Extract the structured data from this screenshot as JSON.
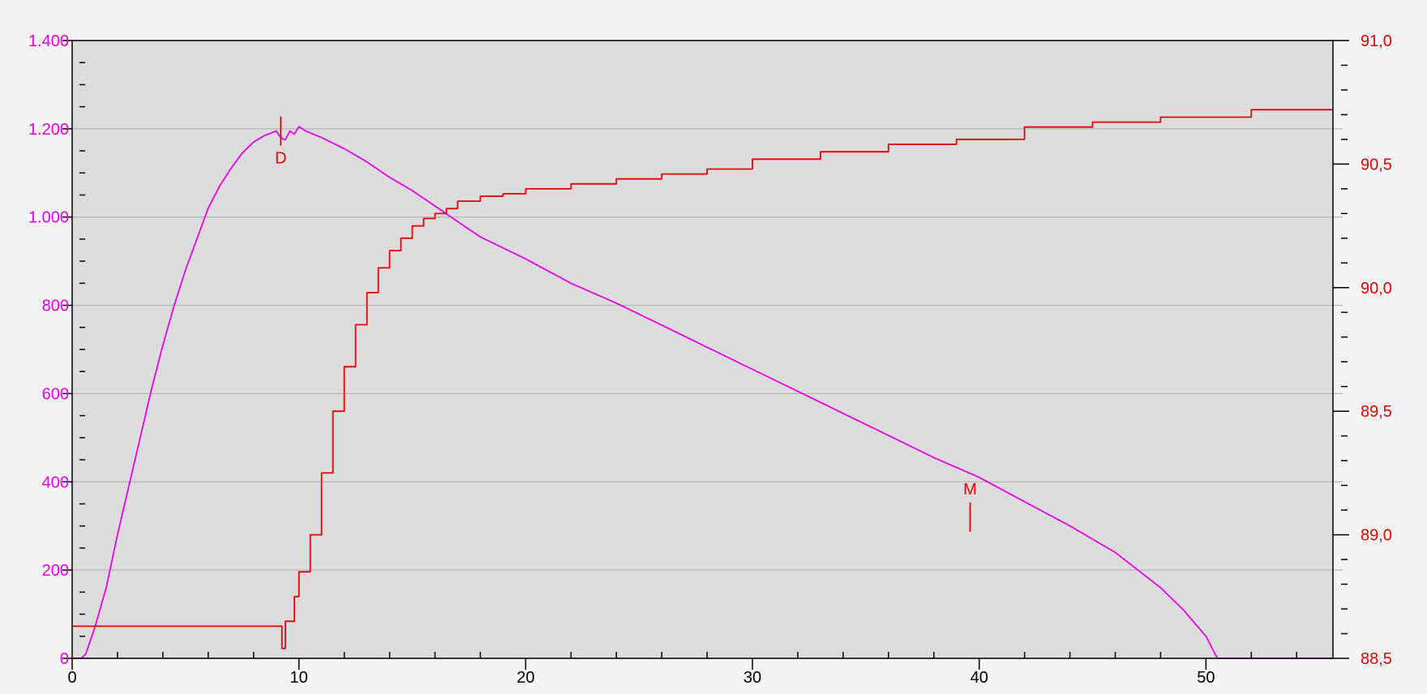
{
  "chart_data": {
    "type": "line",
    "title": "",
    "xlabel": "",
    "ylabel_left": "",
    "ylabel_right": "",
    "xlim": [
      0,
      55.6
    ],
    "x_ticks": [
      "0",
      "10",
      "20",
      "30",
      "40",
      "50"
    ],
    "x_tick_values": [
      0,
      10,
      20,
      30,
      40,
      50
    ],
    "y_left": {
      "lim": [
        0,
        1400
      ],
      "tick_values": [
        0,
        200,
        400,
        600,
        800,
        1000,
        1200,
        1400
      ],
      "tick_labels": [
        "0",
        "200",
        "400",
        "600",
        "800",
        "1.000",
        "1.200",
        "1.400"
      ],
      "color": "#e600e6"
    },
    "y_right": {
      "lim": [
        88.5,
        91.0
      ],
      "tick_values": [
        88.5,
        89.0,
        89.5,
        90.0,
        90.5,
        91.0
      ],
      "tick_labels": [
        "88,5",
        "89,0",
        "89,5",
        "90,0",
        "90,5",
        "91,0"
      ],
      "color": "#e60000"
    },
    "grid": true,
    "plot_background": "#dcdcdc",
    "series": [
      {
        "axis": "left",
        "color": "#e600e6",
        "points": [
          [
            0,
            0
          ],
          [
            0.4,
            0
          ],
          [
            0.6,
            10
          ],
          [
            0.8,
            40
          ],
          [
            1.0,
            70
          ],
          [
            1.5,
            160
          ],
          [
            2.0,
            280
          ],
          [
            2.5,
            390
          ],
          [
            3.0,
            500
          ],
          [
            3.5,
            610
          ],
          [
            4.0,
            710
          ],
          [
            4.5,
            800
          ],
          [
            5.0,
            880
          ],
          [
            5.5,
            950
          ],
          [
            6.0,
            1020
          ],
          [
            6.5,
            1070
          ],
          [
            7.0,
            1110
          ],
          [
            7.5,
            1145
          ],
          [
            8.0,
            1170
          ],
          [
            8.5,
            1185
          ],
          [
            9.0,
            1195
          ],
          [
            9.2,
            1180
          ],
          [
            9.4,
            1175
          ],
          [
            9.6,
            1195
          ],
          [
            9.8,
            1188
          ],
          [
            10.0,
            1205
          ],
          [
            10.3,
            1195
          ],
          [
            11.0,
            1180
          ],
          [
            12.0,
            1155
          ],
          [
            13.0,
            1125
          ],
          [
            14.0,
            1090
          ],
          [
            15.0,
            1060
          ],
          [
            16.0,
            1025
          ],
          [
            17.0,
            990
          ],
          [
            18.0,
            955
          ],
          [
            20.0,
            905
          ],
          [
            22.0,
            850
          ],
          [
            24.0,
            805
          ],
          [
            26.0,
            755
          ],
          [
            28.0,
            705
          ],
          [
            30.0,
            655
          ],
          [
            32.0,
            605
          ],
          [
            34.0,
            555
          ],
          [
            36.0,
            505
          ],
          [
            38.0,
            455
          ],
          [
            40.0,
            410
          ],
          [
            42.0,
            355
          ],
          [
            44.0,
            300
          ],
          [
            46.0,
            240
          ],
          [
            48.0,
            160
          ],
          [
            49.0,
            110
          ],
          [
            50.0,
            50
          ],
          [
            50.5,
            0
          ],
          [
            55.6,
            0
          ]
        ]
      },
      {
        "axis": "right",
        "color": "#e60000",
        "points": [
          [
            0,
            88.63
          ],
          [
            8.9,
            88.63
          ],
          [
            9.2,
            88.63
          ],
          [
            9.25,
            88.54
          ],
          [
            9.4,
            88.65
          ],
          [
            9.8,
            88.75
          ],
          [
            10.0,
            88.85
          ],
          [
            10.5,
            89.0
          ],
          [
            11.0,
            89.25
          ],
          [
            11.5,
            89.5
          ],
          [
            12.0,
            89.68
          ],
          [
            12.5,
            89.85
          ],
          [
            13.0,
            89.98
          ],
          [
            13.5,
            90.08
          ],
          [
            14.0,
            90.15
          ],
          [
            14.5,
            90.2
          ],
          [
            15.0,
            90.25
          ],
          [
            15.5,
            90.28
          ],
          [
            16.0,
            90.3
          ],
          [
            16.5,
            90.32
          ],
          [
            17.0,
            90.35
          ],
          [
            18.0,
            90.37
          ],
          [
            19.0,
            90.38
          ],
          [
            20.0,
            90.4
          ],
          [
            22.0,
            90.42
          ],
          [
            24.0,
            90.44
          ],
          [
            26.0,
            90.46
          ],
          [
            28.0,
            90.48
          ],
          [
            30.0,
            90.52
          ],
          [
            33.0,
            90.55
          ],
          [
            36.0,
            90.58
          ],
          [
            39.0,
            90.6
          ],
          [
            42.0,
            90.65
          ],
          [
            45.0,
            90.67
          ],
          [
            48.0,
            90.69
          ],
          [
            52.0,
            90.72
          ],
          [
            55.6,
            90.72
          ]
        ]
      }
    ],
    "annotations": [
      {
        "label": "D",
        "x": 9.2,
        "y_left": 1195
      },
      {
        "label": "M",
        "x": 39.6,
        "y_left": 320
      }
    ]
  }
}
